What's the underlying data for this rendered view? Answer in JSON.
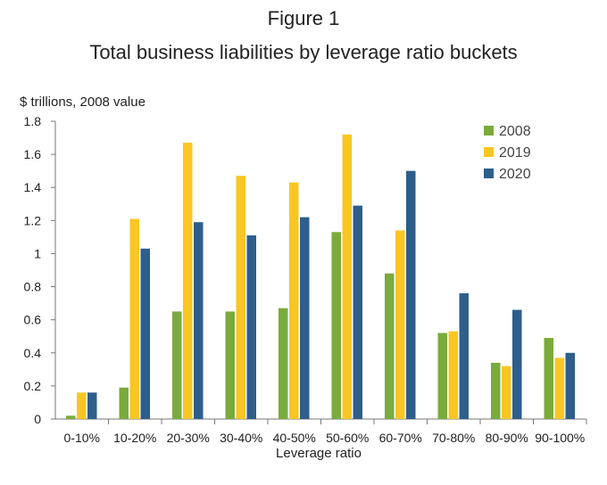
{
  "figure_label": "Figure 1",
  "chart_data": {
    "type": "bar",
    "title": "Total business liabilities by leverage ratio buckets",
    "ylabel": "$ trillions, 2008 value",
    "xlabel": "Leverage ratio",
    "categories": [
      "0-10%",
      "10-20%",
      "20-30%",
      "30-40%",
      "40-50%",
      "50-60%",
      "60-70%",
      "70-80%",
      "80-90%",
      "90-100%"
    ],
    "ylim": [
      0,
      1.8
    ],
    "yticks": [
      0,
      0.2,
      0.4,
      0.6,
      0.8,
      1,
      1.2,
      1.4,
      1.6,
      1.8
    ],
    "ytick_labels": [
      "0",
      "0.2",
      "0.4",
      "0.6",
      "0.8",
      "1",
      "1.2",
      "1.4",
      "1.6",
      "1.8"
    ],
    "grid": false,
    "legend_position": "top-right",
    "series": [
      {
        "name": "2008",
        "color": "#7aab3c",
        "values": [
          0.02,
          0.19,
          0.65,
          0.65,
          0.67,
          1.13,
          0.88,
          0.52,
          0.34,
          0.49
        ]
      },
      {
        "name": "2019",
        "color": "#f9c623",
        "values": [
          0.16,
          1.21,
          1.67,
          1.47,
          1.43,
          1.72,
          1.14,
          0.53,
          0.32,
          0.37
        ]
      },
      {
        "name": "2020",
        "color": "#2e5e8c",
        "values": [
          0.16,
          1.03,
          1.19,
          1.11,
          1.22,
          1.29,
          1.5,
          0.76,
          0.66,
          0.4
        ]
      }
    ]
  }
}
